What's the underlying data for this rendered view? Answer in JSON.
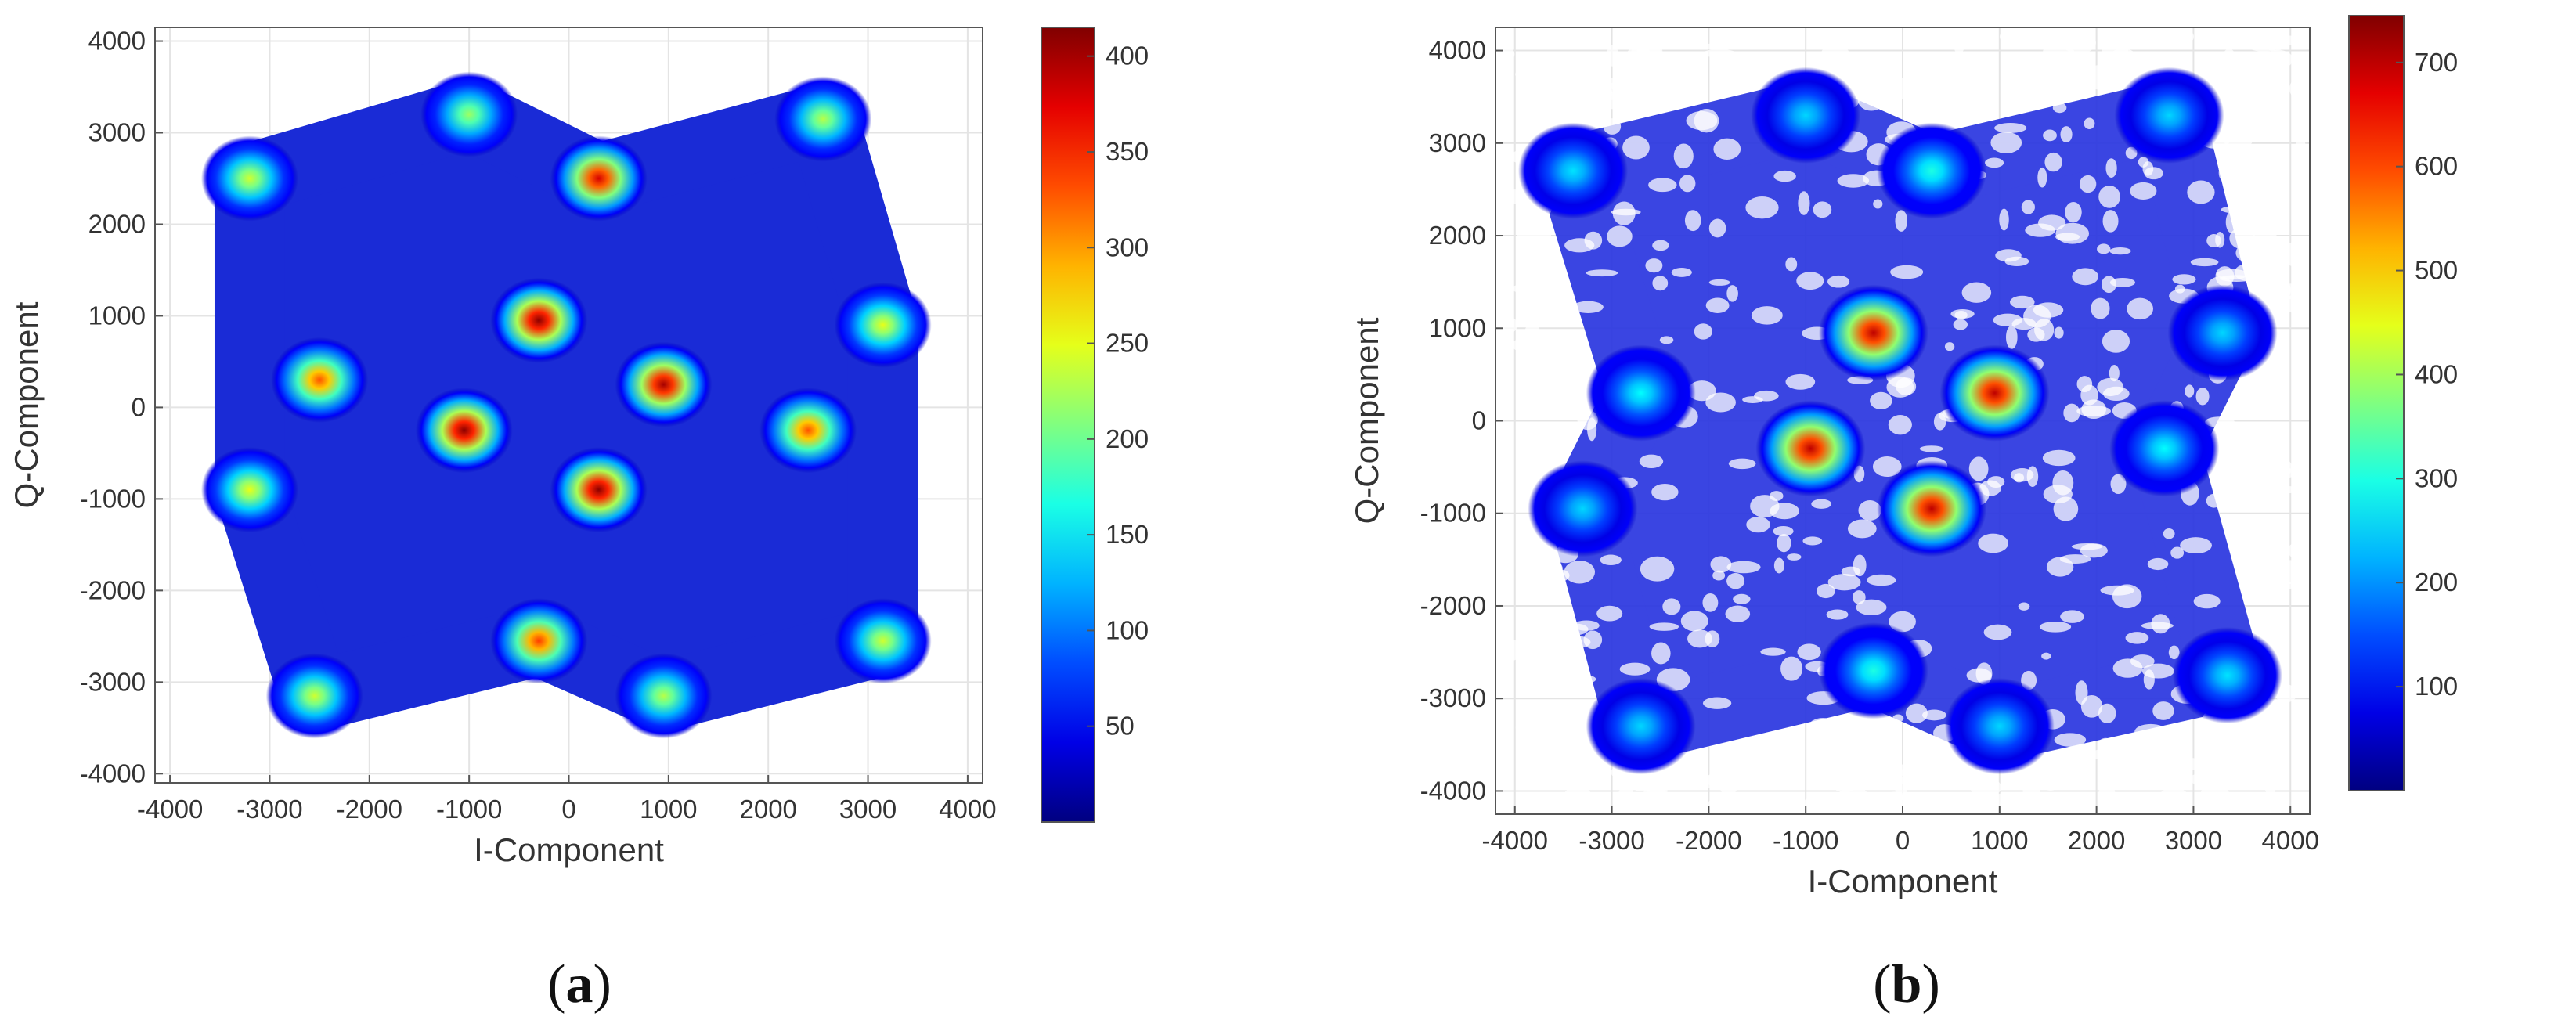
{
  "chart_data": [
    {
      "type": "heatmap",
      "caption_letter": "a",
      "xlabel": "I-Component",
      "ylabel": "Q-Component",
      "xlim": [
        -4150,
        4150
      ],
      "ylim": [
        -4100,
        4150
      ],
      "xticks": [
        -4000,
        -3000,
        -2000,
        -1000,
        0,
        1000,
        2000,
        3000,
        4000
      ],
      "yticks": [
        -4000,
        -3000,
        -2000,
        -1000,
        0,
        1000,
        2000,
        3000,
        4000
      ],
      "colorbar": {
        "min": 0,
        "max": 415,
        "ticks": [
          50,
          100,
          150,
          200,
          250,
          300,
          350,
          400
        ]
      },
      "grid": true,
      "clusters": [
        {
          "x": -1000,
          "y": 3200,
          "peak": 220
        },
        {
          "x": 2550,
          "y": 3150,
          "peak": 230
        },
        {
          "x": -3200,
          "y": 2500,
          "peak": 240
        },
        {
          "x": 300,
          "y": 2500,
          "peak": 380
        },
        {
          "x": -300,
          "y": 950,
          "peak": 410
        },
        {
          "x": 3150,
          "y": 900,
          "peak": 250
        },
        {
          "x": -2500,
          "y": 300,
          "peak": 330
        },
        {
          "x": 950,
          "y": 250,
          "peak": 400
        },
        {
          "x": -1050,
          "y": -250,
          "peak": 410
        },
        {
          "x": 2400,
          "y": -250,
          "peak": 330
        },
        {
          "x": -3200,
          "y": -900,
          "peak": 250
        },
        {
          "x": 300,
          "y": -900,
          "peak": 410
        },
        {
          "x": -300,
          "y": -2550,
          "peak": 340
        },
        {
          "x": 3150,
          "y": -2550,
          "peak": 240
        },
        {
          "x": -2550,
          "y": -3150,
          "peak": 240
        },
        {
          "x": 950,
          "y": -3150,
          "peak": 230
        }
      ]
    },
    {
      "type": "heatmap",
      "caption_letter": "b",
      "xlabel": "I-Component",
      "ylabel": "Q-Component",
      "xlim": [
        -4200,
        4200
      ],
      "ylim": [
        -4250,
        4250
      ],
      "xticks": [
        -4000,
        -3000,
        -2000,
        -1000,
        0,
        1000,
        2000,
        3000,
        4000
      ],
      "yticks": [
        -4000,
        -3000,
        -2000,
        -1000,
        0,
        1000,
        2000,
        3000,
        4000
      ],
      "colorbar": {
        "min": 0,
        "max": 745,
        "ticks": [
          100,
          200,
          300,
          400,
          500,
          600,
          700
        ]
      },
      "grid": true,
      "clusters": [
        {
          "x": -1000,
          "y": 3300,
          "peak": 250
        },
        {
          "x": 2750,
          "y": 3300,
          "peak": 250
        },
        {
          "x": -3400,
          "y": 2700,
          "peak": 260
        },
        {
          "x": 300,
          "y": 2700,
          "peak": 300
        },
        {
          "x": -300,
          "y": 950,
          "peak": 700
        },
        {
          "x": 3300,
          "y": 950,
          "peak": 250
        },
        {
          "x": -2700,
          "y": 300,
          "peak": 280
        },
        {
          "x": 950,
          "y": 300,
          "peak": 700
        },
        {
          "x": -950,
          "y": -300,
          "peak": 700
        },
        {
          "x": 2700,
          "y": -300,
          "peak": 280
        },
        {
          "x": -3300,
          "y": -950,
          "peak": 250
        },
        {
          "x": 300,
          "y": -950,
          "peak": 700
        },
        {
          "x": -300,
          "y": -2700,
          "peak": 300
        },
        {
          "x": 3350,
          "y": -2750,
          "peak": 260
        },
        {
          "x": -2700,
          "y": -3300,
          "peak": 250
        },
        {
          "x": 1000,
          "y": -3300,
          "peak": 250
        }
      ]
    }
  ]
}
